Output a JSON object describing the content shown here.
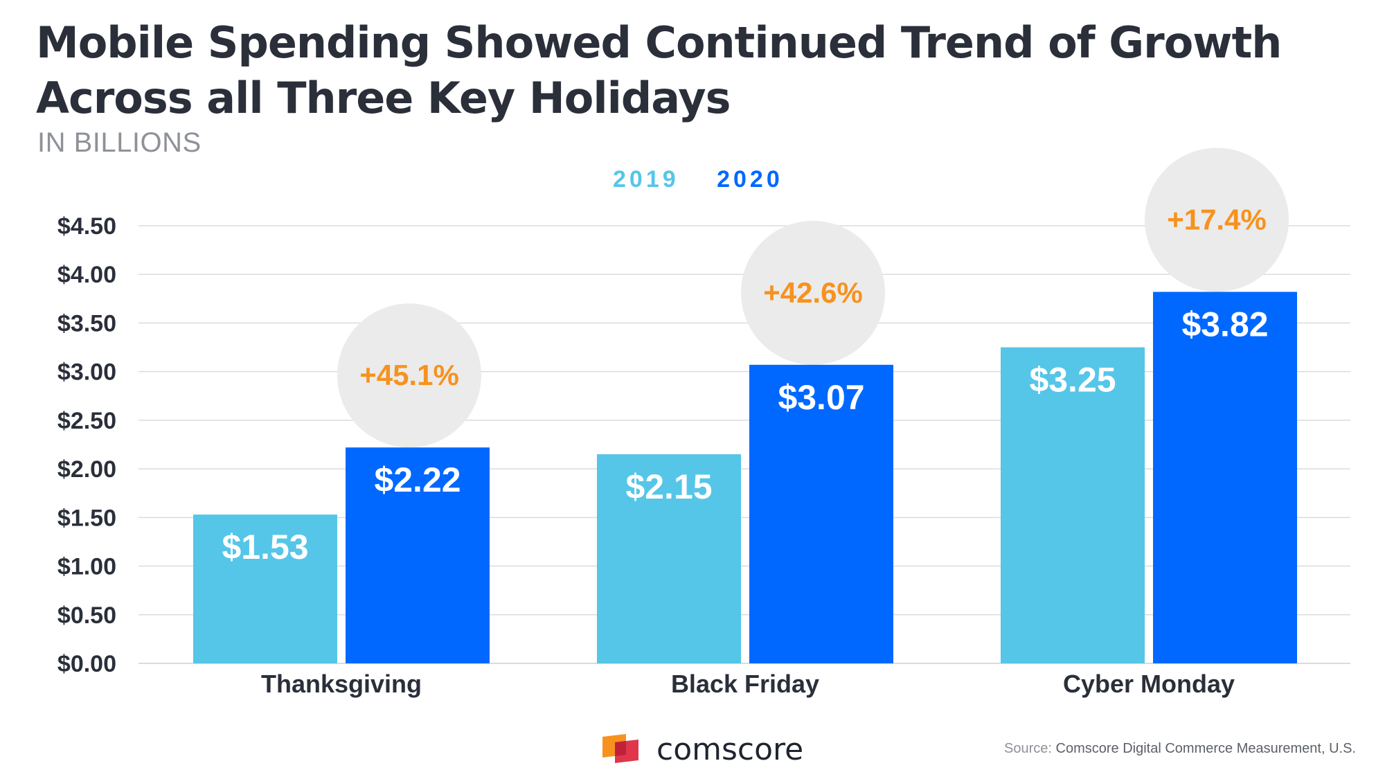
{
  "title": "Mobile Spending Showed Continued Trend of Growth Across all Three Key Holidays",
  "subtitle": "IN BILLIONS",
  "source_label": "Source:",
  "source_text": "Comscore Digital Commerce Measurement, U.S.",
  "brand": {
    "name": "comscore",
    "logo_icon": "comscore-logo-icon"
  },
  "colors": {
    "series_2019": "#55c6e8",
    "series_2020": "#0068ff",
    "growth_text": "#f7921e",
    "growth_bubble": "#ebebeb",
    "axis_text": "#2a2f3a",
    "grid": "#dadbdd"
  },
  "chart_data": {
    "type": "bar",
    "title": "Mobile Spending Showed Continued Trend of Growth Across all Three Key Holidays",
    "ylabel": "IN BILLIONS",
    "xlabel": "",
    "categories": [
      "Thanksgiving",
      "Black Friday",
      "Cyber Monday"
    ],
    "series": [
      {
        "name": "2019",
        "values": [
          1.53,
          2.15,
          3.25
        ],
        "labels": [
          "$1.53",
          "$2.15",
          "$3.25"
        ]
      },
      {
        "name": "2020",
        "values": [
          2.22,
          3.07,
          3.82
        ],
        "labels": [
          "$2.22",
          "$3.07",
          "$3.82"
        ]
      }
    ],
    "growth_labels": [
      "+45.1%",
      "+42.6%",
      "+17.4%"
    ],
    "ylim": [
      0,
      4.5
    ],
    "yticks": [
      0,
      0.5,
      1,
      1.5,
      2,
      2.5,
      3,
      3.5,
      4,
      4.5
    ],
    "ytick_labels": [
      "$0.00",
      "$0.50",
      "$1.00",
      "$1.50",
      "$2.00",
      "$2.50",
      "$3.00",
      "$3.50",
      "$4.00",
      "$4.50"
    ],
    "grid": true,
    "legend_placement": "top-center"
  }
}
